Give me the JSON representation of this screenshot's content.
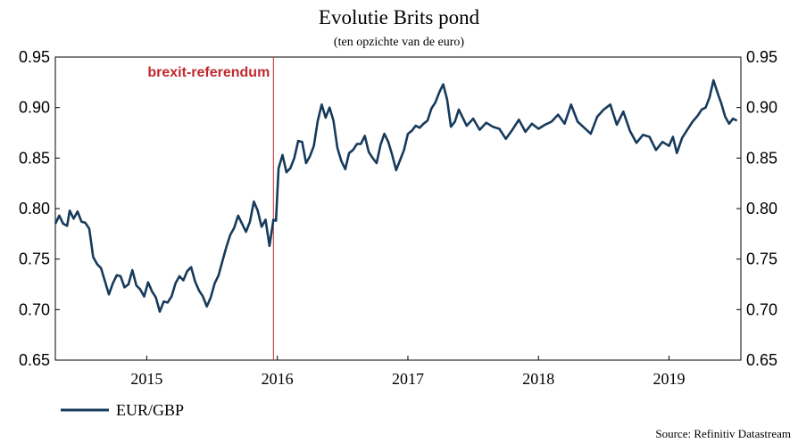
{
  "chart_data": {
    "type": "line",
    "title": "Evolutie Brits pond",
    "subtitle": "(ten opzichte van de euro)",
    "source": "Source: Refinitiv Datastream",
    "ylim": [
      0.65,
      0.95
    ],
    "yticks": [
      "0.65",
      "0.70",
      "0.75",
      "0.80",
      "0.85",
      "0.90",
      "0.95"
    ],
    "xlim": [
      2014.3,
      2019.55
    ],
    "xticks": [
      {
        "label": "2015",
        "value": 2015.0
      },
      {
        "label": "2016",
        "value": 2016.0
      },
      {
        "label": "2017",
        "value": 2017.0
      },
      {
        "label": "2018",
        "value": 2018.0
      },
      {
        "label": "2019",
        "value": 2019.0
      }
    ],
    "annotation": {
      "label": "brexit-referendum",
      "x": 2015.97
    },
    "line_color": "#163a5c",
    "annotation_color": "#c0282e",
    "series": [
      {
        "name": "EUR/GBP",
        "x": [
          2014.3,
          2014.33,
          2014.36,
          2014.39,
          2014.41,
          2014.44,
          2014.47,
          2014.5,
          2014.53,
          2014.56,
          2014.59,
          2014.62,
          2014.65,
          2014.68,
          2014.71,
          2014.74,
          2014.77,
          2014.8,
          2014.83,
          2014.86,
          2014.89,
          2014.92,
          2014.95,
          2014.98,
          2015.01,
          2015.04,
          2015.07,
          2015.1,
          2015.13,
          2015.16,
          2015.19,
          2015.22,
          2015.25,
          2015.28,
          2015.31,
          2015.34,
          2015.37,
          2015.4,
          2015.43,
          2015.46,
          2015.49,
          2015.52,
          2015.55,
          2015.58,
          2015.61,
          2015.64,
          2015.67,
          2015.7,
          2015.73,
          2015.76,
          2015.79,
          2015.82,
          2015.85,
          2015.88,
          2015.91,
          2015.94,
          2015.97,
          2015.99,
          2016.01,
          2016.04,
          2016.07,
          2016.1,
          2016.13,
          2016.16,
          2016.19,
          2016.22,
          2016.25,
          2016.28,
          2016.31,
          2016.34,
          2016.37,
          2016.4,
          2016.43,
          2016.46,
          2016.49,
          2016.52,
          2016.55,
          2016.58,
          2016.61,
          2016.64,
          2016.67,
          2016.7,
          2016.73,
          2016.76,
          2016.79,
          2016.82,
          2016.85,
          2016.88,
          2016.91,
          2016.94,
          2016.97,
          2017.0,
          2017.03,
          2017.06,
          2017.09,
          2017.12,
          2017.15,
          2017.18,
          2017.21,
          2017.24,
          2017.27,
          2017.3,
          2017.33,
          2017.36,
          2017.39,
          2017.42,
          2017.45,
          2017.5,
          2017.55,
          2017.6,
          2017.65,
          2017.7,
          2017.75,
          2017.8,
          2017.85,
          2017.9,
          2017.95,
          2018.0,
          2018.05,
          2018.1,
          2018.15,
          2018.2,
          2018.25,
          2018.3,
          2018.35,
          2018.4,
          2018.45,
          2018.5,
          2018.55,
          2018.6,
          2018.65,
          2018.7,
          2018.75,
          2018.8,
          2018.85,
          2018.9,
          2018.95,
          2019.0,
          2019.03,
          2019.06,
          2019.1,
          2019.14,
          2019.18,
          2019.22,
          2019.25,
          2019.28,
          2019.31,
          2019.34,
          2019.37,
          2019.4,
          2019.43,
          2019.46,
          2019.49,
          2019.52
        ],
        "values": [
          0.785,
          0.793,
          0.785,
          0.783,
          0.798,
          0.79,
          0.797,
          0.787,
          0.786,
          0.78,
          0.752,
          0.745,
          0.741,
          0.728,
          0.715,
          0.726,
          0.734,
          0.733,
          0.722,
          0.725,
          0.739,
          0.724,
          0.72,
          0.713,
          0.727,
          0.718,
          0.712,
          0.698,
          0.708,
          0.707,
          0.713,
          0.726,
          0.733,
          0.729,
          0.738,
          0.742,
          0.728,
          0.719,
          0.713,
          0.703,
          0.712,
          0.726,
          0.734,
          0.748,
          0.762,
          0.774,
          0.781,
          0.793,
          0.785,
          0.777,
          0.787,
          0.807,
          0.798,
          0.782,
          0.789,
          0.763,
          0.789,
          0.788,
          0.84,
          0.853,
          0.836,
          0.84,
          0.85,
          0.867,
          0.866,
          0.845,
          0.852,
          0.862,
          0.887,
          0.903,
          0.89,
          0.9,
          0.887,
          0.86,
          0.847,
          0.839,
          0.855,
          0.858,
          0.864,
          0.864,
          0.872,
          0.856,
          0.85,
          0.845,
          0.863,
          0.874,
          0.866,
          0.853,
          0.838,
          0.848,
          0.858,
          0.874,
          0.877,
          0.882,
          0.88,
          0.884,
          0.887,
          0.899,
          0.905,
          0.915,
          0.923,
          0.908,
          0.881,
          0.886,
          0.898,
          0.89,
          0.882,
          0.889,
          0.878,
          0.885,
          0.881,
          0.879,
          0.869,
          0.878,
          0.888,
          0.876,
          0.884,
          0.879,
          0.883,
          0.886,
          0.893,
          0.884,
          0.903,
          0.886,
          0.88,
          0.874,
          0.891,
          0.898,
          0.903,
          0.883,
          0.896,
          0.877,
          0.865,
          0.873,
          0.871,
          0.858,
          0.866,
          0.862,
          0.871,
          0.855,
          0.87,
          0.878,
          0.886,
          0.892,
          0.898,
          0.9,
          0.91,
          0.927,
          0.915,
          0.904,
          0.891,
          0.884,
          0.889,
          0.887
        ]
      }
    ]
  }
}
